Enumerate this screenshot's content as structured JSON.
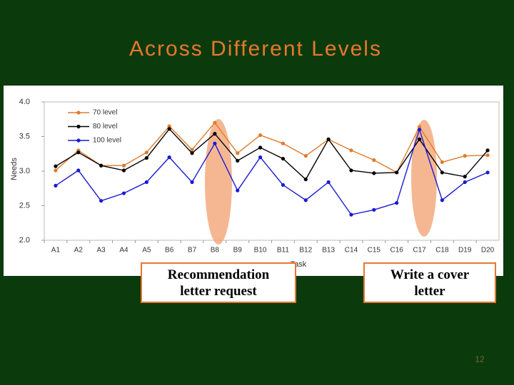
{
  "slide": {
    "title": "Across Different Levels",
    "page_number": "12"
  },
  "chart_data": {
    "type": "line",
    "x_label": "Task",
    "y_label": "Needs",
    "categories": [
      "A1",
      "A2",
      "A3",
      "A4",
      "A5",
      "B6",
      "B7",
      "B8",
      "B9",
      "B10",
      "B11",
      "B12",
      "B13",
      "C14",
      "C15",
      "C16",
      "C17",
      "C18",
      "D19",
      "D20"
    ],
    "series": [
      {
        "name": "70 level",
        "color": "#e07b2a",
        "values": [
          3.01,
          3.3,
          3.08,
          3.08,
          3.27,
          3.65,
          3.31,
          3.7,
          3.26,
          3.52,
          3.4,
          3.22,
          3.46,
          3.3,
          3.16,
          2.98,
          3.64,
          3.13,
          3.22,
          3.23
        ]
      },
      {
        "name": "80 level",
        "color": "#000000",
        "values": [
          3.07,
          3.27,
          3.08,
          3.01,
          3.19,
          3.61,
          3.26,
          3.54,
          3.15,
          3.34,
          3.18,
          2.88,
          3.46,
          3.01,
          2.97,
          2.98,
          3.46,
          2.98,
          2.92,
          3.3
        ]
      },
      {
        "name": "100 level",
        "color": "#1a1ad4",
        "values": [
          2.79,
          3.01,
          2.57,
          2.68,
          2.84,
          3.2,
          2.84,
          3.4,
          2.72,
          3.2,
          2.8,
          2.58,
          2.84,
          2.37,
          2.44,
          2.54,
          3.6,
          2.58,
          2.84,
          2.98
        ]
      }
    ],
    "ylim": [
      2.0,
      4.0
    ],
    "yticks": [
      {
        "value": 4.0,
        "label": "4.0"
      },
      {
        "value": 3.5,
        "label": "3.5"
      },
      {
        "value": 3.0,
        "label": "3.0"
      },
      {
        "value": 2.5,
        "label": "2.5"
      },
      {
        "value": 2.0,
        "label": "2.0"
      }
    ],
    "legend": "top-left"
  },
  "callouts": [
    {
      "lines": [
        "Recommendation",
        "letter request"
      ]
    },
    {
      "lines": [
        "Write a cover",
        "letter"
      ]
    }
  ]
}
